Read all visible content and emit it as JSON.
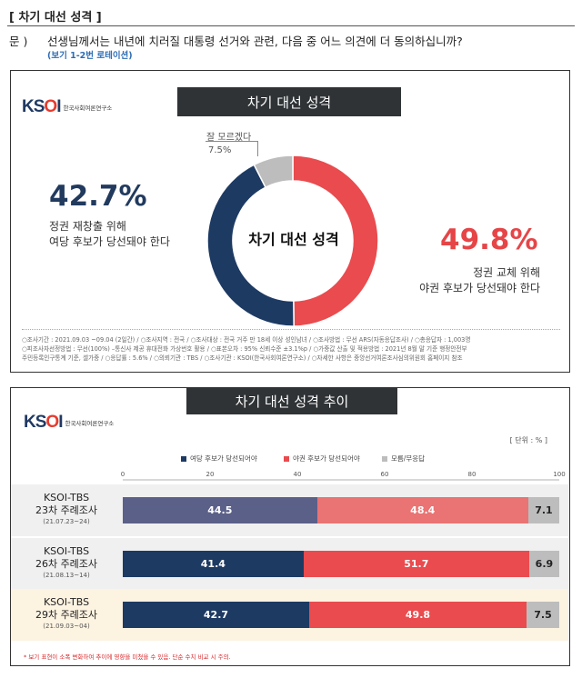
{
  "header": {
    "section_title": "[ 차기 대선 성격 ]",
    "question_label": "문 )",
    "question_text": "선생님께서는 내년에 치러질 대통령 선거와 관련, 다음 중 어느 의견에 더 동의하십니까?",
    "question_note": "(보기 1-2번 로테이션)"
  },
  "logo": {
    "mark": "KSOI",
    "sub": "한국사회여론연구소"
  },
  "panel1": {
    "banner": "차기 대선 성격",
    "center_label": "차기 대선 성격",
    "left_pct": "42.7%",
    "left_desc1": "정권 재창출 위해",
    "left_desc2": "여당 후보가 당선돼야 한다",
    "right_pct": "49.8%",
    "right_desc1": "정권 교체 위해",
    "right_desc2": "야권 후보가 당선돼야 한다",
    "unsure_label": "잘 모르겠다",
    "unsure_pct": "7.5%",
    "footnote_line1": "○조사기간 : 2021.09.03 ~09.04 (2일간)  / ○조사지역 : 전국  / ○조사대상 : 전국 거주 만 18세 이상 성인남녀  / ○조사방법 : 무선 ARS(자동응답조사)  / ○총응답자 : 1,003명",
    "footnote_line2": "○피조사자선정방법 : 무선(100%) –통신사 제공 휴대전화 가상번호 활용  / ○표본오차 : 95% 신뢰수준 ±3.1%p  / ○가중값 산출 및 적용방법 : 2021년 8월 말 기준 행정안전부",
    "footnote_line3": "주민등록인구통계 기준, 셀가중  / ○응답률 : 5.6%  / ○의뢰기관 : TBS  / ○조사기관 : KSOI(한국사회여론연구소)  / ○자세한 사항은 중앙선거여론조사심의위원회 홈페이지 참조"
  },
  "panel2": {
    "banner": "차기 대선 성격 추이",
    "unit": "[ 단위 : % ]",
    "bottom_note": "* 보기 표현이 소폭 변화하여 추이에 영향을 미쳤을 수 있음. 단순 수치 비교 시 주의."
  },
  "colors": {
    "ruling": "#1d3a63",
    "opposition": "#e94b4e",
    "unsure": "#bdbdbd",
    "ruling_light": "#5b6089",
    "opposition_light": "#ea7373",
    "highlight_row": "#fdf3e1",
    "row_bg": "#f0f0f0"
  },
  "chart_data": [
    {
      "type": "pie",
      "title": "차기 대선 성격",
      "donut": true,
      "labels": [
        "정권 교체 위해 야권 후보가 당선돼야 한다",
        "정권 재창출 위해 여당 후보가 당선돼야 한다",
        "잘 모르겠다"
      ],
      "values": [
        49.8,
        42.7,
        7.5
      ]
    },
    {
      "type": "bar",
      "stacked": true,
      "orientation": "horizontal",
      "title": "차기 대선 성격 추이",
      "unit": "%",
      "xlim": [
        0,
        100
      ],
      "xticks": [
        0,
        20,
        40,
        60,
        80,
        100
      ],
      "categories": [
        {
          "line1": "KSOI-TBS",
          "line2": "23차 주례조사",
          "date": "(21.07.23~24)"
        },
        {
          "line1": "KSOI-TBS",
          "line2": "26차 주례조사",
          "date": "(21.08.13~14)"
        },
        {
          "line1": "KSOI-TBS",
          "line2": "29차 주례조사",
          "date": "(21.09.03~04)"
        }
      ],
      "series": [
        {
          "name": "여당 후보가 당선되어야",
          "values": [
            44.5,
            41.4,
            42.7
          ]
        },
        {
          "name": "야권 후보가 당선되어야",
          "values": [
            48.4,
            51.7,
            49.8
          ]
        },
        {
          "name": "모름/무응답",
          "values": [
            7.1,
            6.9,
            7.5
          ]
        }
      ]
    }
  ]
}
